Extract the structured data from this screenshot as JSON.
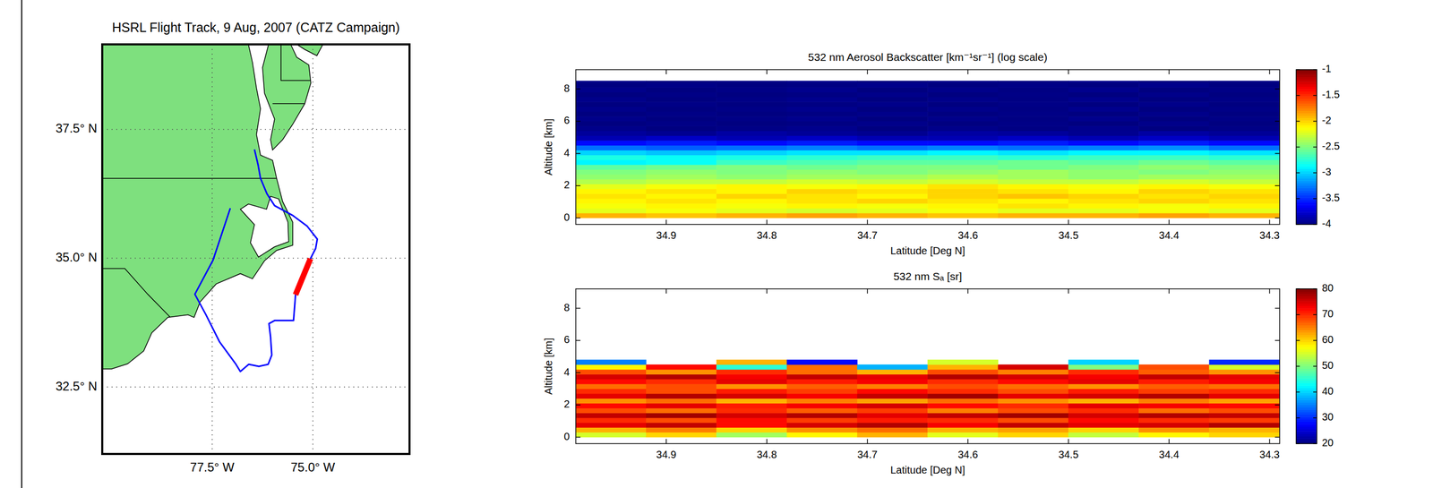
{
  "chart_data": [
    {
      "type": "map",
      "title": "HSRL Flight Track, 9 Aug, 2007 (CATZ Campaign)",
      "xlim": [
        -80.23,
        -72.6
      ],
      "ylim": [
        31.2,
        39.15
      ],
      "xticks": [
        {
          "value": -77.5,
          "label": "77.5° W"
        },
        {
          "value": -75,
          "label": "75.0° W"
        }
      ],
      "yticks": [
        {
          "value": 32.5,
          "label": "32.5° N"
        },
        {
          "value": 35,
          "label": "35.0° N"
        },
        {
          "value": 37.5,
          "label": "37.5° N"
        }
      ],
      "grid": true,
      "land": [
        {
          "color": "#7ee07e",
          "x": [
            -80.23,
            -76.6,
            -76.5,
            -76.4,
            -76.3,
            -76.4,
            -76.3,
            -76.0,
            -75.9,
            -75.75,
            -75.5,
            -75.5,
            -75.9,
            -76.2,
            -76.5,
            -76.8,
            -77.4,
            -77.8,
            -77.95,
            -78.1,
            -78.6,
            -79.0,
            -79.2,
            -79.6,
            -80.0,
            -80.23
          ],
          "y": [
            39.15,
            39.15,
            38.8,
            38.3,
            37.9,
            37.4,
            37.0,
            36.9,
            36.55,
            36.1,
            35.7,
            35.25,
            35.15,
            34.95,
            34.6,
            34.7,
            34.5,
            34.15,
            33.85,
            33.9,
            33.85,
            33.55,
            33.2,
            32.95,
            32.85,
            32.85
          ]
        },
        {
          "color": "#7ee07e",
          "x": [
            -76.1,
            -75.55,
            -75.4,
            -75.1,
            -75.05,
            -75.2,
            -75.5,
            -75.75,
            -76.0,
            -76.05,
            -75.95,
            -76.2,
            -76.25,
            -76.15
          ],
          "y": [
            39.15,
            39.15,
            38.9,
            38.75,
            38.4,
            38.0,
            37.6,
            37.3,
            37.1,
            37.3,
            37.7,
            38.2,
            38.7,
            39.0
          ]
        },
        {
          "color": "#7ee07e",
          "x": [
            -75.4,
            -74.75,
            -74.9,
            -75.2
          ],
          "y": [
            39.15,
            39.15,
            38.93,
            39.05
          ]
        }
      ],
      "water": [
        {
          "color": "#ffffff",
          "x": [
            -75.85,
            -75.62,
            -75.6,
            -75.95,
            -76.35,
            -76.55,
            -76.45,
            -76.8,
            -76.6,
            -76.15,
            -76.05
          ],
          "y": [
            36.15,
            35.7,
            35.32,
            35.22,
            35.02,
            35.3,
            35.65,
            35.95,
            36.05,
            35.95,
            36.2
          ]
        }
      ],
      "borders": [
        {
          "color": "#000000",
          "x": [
            -80.23,
            -75.9
          ],
          "y": [
            36.55,
            36.55
          ]
        },
        {
          "color": "#000000",
          "x": [
            -78.55,
            -79.1,
            -79.67,
            -80.23
          ],
          "y": [
            33.86,
            34.3,
            34.8,
            34.8
          ]
        },
        {
          "color": "#000000",
          "x": [
            -76.0,
            -75.2
          ],
          "y": [
            38.0,
            38.0
          ]
        },
        {
          "color": "#000000",
          "x": [
            -75.79,
            -75.79,
            -75.05
          ],
          "y": [
            39.15,
            38.45,
            38.45
          ]
        }
      ],
      "series": [
        {
          "color": "#0000ff",
          "x": [
            -77.05,
            -77.48,
            -77.93,
            -77.66,
            -77.32,
            -76.91,
            -76.8,
            -76.59,
            -76.34,
            -76.11,
            -76.02,
            -76.05,
            -76.09,
            -75.95,
            -75.48,
            -75.43,
            -75.06,
            -74.93,
            -74.89,
            -75.14,
            -75.5,
            -75.95,
            -76.14,
            -76.3,
            -76.36,
            -76.45
          ],
          "y": [
            35.97,
            34.96,
            34.3,
            33.91,
            33.38,
            32.94,
            32.8,
            32.94,
            32.9,
            32.94,
            33.12,
            33.47,
            33.73,
            33.79,
            33.79,
            34.29,
            34.99,
            35.19,
            35.37,
            35.62,
            35.83,
            36.02,
            36.25,
            36.55,
            36.81,
            37.11
          ]
        },
        {
          "color": "#ff0000",
          "x": [
            -75.43,
            -75.06
          ],
          "y": [
            34.29,
            34.99
          ]
        }
      ]
    },
    {
      "type": "heatmap",
      "title": "532 nm Aerosol Backscatter [km⁻¹sr⁻¹] (log scale)",
      "x_label": "Latitude [Deg N]",
      "y_label": "Altitude [km]",
      "xlim": [
        34.99,
        34.29
      ],
      "ylim": [
        -0.4,
        9.2
      ],
      "xticks": [
        34.9,
        34.8,
        34.7,
        34.6,
        34.5,
        34.4,
        34.3
      ],
      "yticks": [
        0,
        2,
        4,
        6,
        8
      ],
      "x_bins": [
        34.99,
        34.92,
        34.85,
        34.78,
        34.71,
        34.64,
        34.57,
        34.5,
        34.43,
        34.36,
        34.29
      ],
      "y_bins": [
        0,
        0.3,
        0.6,
        0.9,
        1.2,
        1.5,
        1.8,
        2.1,
        2.4,
        2.7,
        3.0,
        3.3,
        3.6,
        3.9,
        4.2,
        4.5,
        4.8,
        5.1,
        5.4,
        5.7,
        6.0,
        6.3,
        6.6,
        6.9,
        7.2,
        7.5,
        7.8,
        8.1,
        8.4,
        8.5
      ],
      "colorbar_lim": [
        -4,
        -1
      ],
      "colorbar_ticks": [
        -4,
        -3.5,
        -3,
        -2.5,
        -2,
        -1.5,
        -1
      ],
      "cells": [
        [
          -1.9,
          -1.95,
          -1.9,
          -1.85,
          -1.9,
          -1.95,
          -1.9,
          -1.9,
          -1.85,
          -1.9
        ],
        [
          -2.2,
          -2.15,
          -2.2,
          -2.25,
          -2.2,
          -2.15,
          -2.2,
          -2.2,
          -2.15,
          -2.2
        ],
        [
          -2.15,
          -2.1,
          -2.15,
          -2.1,
          -2.15,
          -2.1,
          -2.05,
          -2.1,
          -2.15,
          -2.1
        ],
        [
          -2.1,
          -2.05,
          -2.1,
          -2.05,
          -2.0,
          -2.05,
          -2.1,
          -2.05,
          -2.0,
          -2.05
        ],
        [
          -2.05,
          -2.1,
          -2.0,
          -2.05,
          -2.1,
          -2.0,
          -1.95,
          -2.0,
          -2.05,
          -2.0
        ],
        [
          -2.1,
          -2.05,
          -2.1,
          -2.0,
          -2.05,
          -2.0,
          -2.05,
          -2.1,
          -2.0,
          -2.05
        ],
        [
          -2.2,
          -2.15,
          -2.1,
          -2.15,
          -2.1,
          -2.05,
          -2.1,
          -2.15,
          -2.1,
          -2.15
        ],
        [
          -2.35,
          -2.3,
          -2.3,
          -2.25,
          -2.3,
          -2.25,
          -2.3,
          -2.3,
          -2.25,
          -2.3
        ],
        [
          -2.45,
          -2.4,
          -2.45,
          -2.4,
          -2.4,
          -2.35,
          -2.4,
          -2.45,
          -2.4,
          -2.4
        ],
        [
          -2.5,
          -2.45,
          -2.5,
          -2.45,
          -2.5,
          -2.45,
          -2.4,
          -2.45,
          -2.5,
          -2.45
        ],
        [
          -2.6,
          -2.55,
          -2.5,
          -2.55,
          -2.5,
          -2.5,
          -2.55,
          -2.5,
          -2.45,
          -2.5
        ],
        [
          -2.9,
          -2.85,
          -2.7,
          -2.65,
          -2.6,
          -2.6,
          -2.55,
          -2.6,
          -2.55,
          -2.6
        ],
        [
          -2.8,
          -2.85,
          -2.8,
          -2.75,
          -2.7,
          -2.7,
          -2.75,
          -2.7,
          -2.7,
          -2.75
        ],
        [
          -3.0,
          -3.05,
          -3.0,
          -2.95,
          -2.95,
          -2.9,
          -2.95,
          -2.9,
          -2.9,
          -2.95
        ],
        [
          -3.3,
          -3.35,
          -3.3,
          -3.25,
          -3.3,
          -3.25,
          -3.3,
          -3.25,
          -3.2,
          -3.3
        ],
        [
          -3.6,
          -3.55,
          -3.6,
          -3.55,
          -3.6,
          -3.6,
          -3.55,
          -3.6,
          -3.55,
          -3.6
        ],
        [
          -3.85,
          -3.8,
          -3.85,
          -3.8,
          -3.85,
          -3.85,
          -3.8,
          -3.85,
          -3.8,
          -3.85
        ],
        [
          -3.92,
          -3.95,
          -3.9,
          -3.93,
          -3.95,
          -3.9,
          -3.92,
          -3.95,
          -3.9,
          -3.93
        ],
        [
          -3.97,
          -4.0,
          -3.98,
          -3.96,
          -4.0,
          -3.97,
          -3.99,
          -3.96,
          -4.0,
          -3.98
        ],
        [
          -4.0,
          -3.98,
          -4.0,
          -3.99,
          -3.97,
          -4.0,
          -3.98,
          -4.0,
          -3.97,
          -4.0
        ],
        [
          -3.97,
          -4.0,
          -3.98,
          -3.96,
          -4.0,
          -3.97,
          -3.99,
          -3.96,
          -4.0,
          -3.98
        ],
        [
          -4.0,
          -3.98,
          -4.0,
          -3.99,
          -3.97,
          -4.0,
          -3.98,
          -4.0,
          -3.97,
          -4.0
        ],
        [
          -3.97,
          -4.0,
          -3.98,
          -3.96,
          -4.0,
          -3.97,
          -3.99,
          -3.96,
          -4.0,
          -3.98
        ],
        [
          -4.0,
          -3.98,
          -4.0,
          -3.99,
          -3.97,
          -4.0,
          -3.98,
          -4.0,
          -3.97,
          -4.0
        ],
        [
          -3.97,
          -4.0,
          -3.98,
          -3.96,
          -4.0,
          -3.97,
          -3.99,
          -3.96,
          -4.0,
          -3.98
        ],
        [
          -4.0,
          -3.98,
          -4.0,
          -3.99,
          -3.97,
          -4.0,
          -3.98,
          -4.0,
          -3.97,
          -4.0
        ],
        [
          -3.97,
          -4.0,
          -3.98,
          -3.96,
          -4.0,
          -3.97,
          -3.99,
          -3.96,
          -4.0,
          -3.98
        ],
        [
          -4.0,
          -3.98,
          -4.0,
          -3.99,
          -3.97,
          -4.0,
          -3.98,
          -4.0,
          -3.97,
          -4.0
        ],
        [
          -3.97,
          -4.0,
          -3.98,
          -3.96,
          -4.0,
          -3.97,
          -3.99,
          -3.96,
          -4.0,
          -3.98
        ]
      ]
    },
    {
      "type": "heatmap",
      "title": "532 nm Sₐ [sr]",
      "x_label": "Latitude [Deg N]",
      "y_label": "Altitude [km]",
      "xlim": [
        34.99,
        34.29
      ],
      "ylim": [
        -0.4,
        9.2
      ],
      "xticks": [
        34.9,
        34.8,
        34.7,
        34.6,
        34.5,
        34.4,
        34.3
      ],
      "yticks": [
        0,
        2,
        4,
        6,
        8
      ],
      "x_bins": [
        34.99,
        34.92,
        34.85,
        34.78,
        34.71,
        34.64,
        34.57,
        34.5,
        34.43,
        34.36,
        34.29
      ],
      "y_bins": [
        0,
        0.3,
        0.6,
        0.9,
        1.2,
        1.5,
        1.8,
        2.1,
        2.4,
        2.7,
        3.0,
        3.3,
        3.6,
        3.9,
        4.2,
        4.5,
        4.8,
        5.1,
        5.4,
        5.7,
        6.0,
        6.3,
        6.6,
        6.9,
        7.2,
        7.5,
        7.8,
        8.1,
        8.4,
        8.5
      ],
      "colorbar_lim": [
        20,
        80
      ],
      "colorbar_ticks": [
        20,
        30,
        40,
        50,
        60,
        70,
        80
      ],
      "cells": [
        [
          55,
          60,
          52,
          58,
          62,
          56,
          60,
          54,
          58,
          60
        ],
        [
          62,
          65,
          60,
          64,
          66,
          62,
          63,
          60,
          64,
          62
        ],
        [
          74,
          76,
          72,
          75,
          77,
          73,
          76,
          74,
          75,
          77
        ],
        [
          70,
          68,
          72,
          69,
          71,
          70,
          68,
          72,
          70,
          69
        ],
        [
          76,
          78,
          75,
          77,
          74,
          76,
          78,
          75,
          77,
          76
        ],
        [
          68,
          66,
          70,
          67,
          69,
          65,
          68,
          70,
          66,
          68
        ],
        [
          72,
          74,
          71,
          73,
          75,
          72,
          70,
          74,
          73,
          72
        ],
        [
          64,
          66,
          62,
          65,
          63,
          66,
          64,
          62,
          65,
          63
        ],
        [
          74,
          77,
          75,
          73,
          76,
          78,
          74,
          75,
          77,
          74
        ],
        [
          70,
          68,
          71,
          69,
          72,
          70,
          68,
          71,
          69,
          70
        ],
        [
          66,
          68,
          64,
          67,
          65,
          68,
          66,
          64,
          67,
          66
        ],
        [
          72,
          70,
          74,
          71,
          73,
          70,
          72,
          74,
          71,
          73
        ],
        [
          75,
          77,
          73,
          76,
          74,
          77,
          75,
          73,
          76,
          74
        ],
        [
          68,
          64,
          70,
          66,
          62,
          68,
          65,
          70,
          67,
          64
        ],
        [
          58,
          72,
          45,
          66,
          38,
          62,
          75,
          50,
          68,
          55
        ],
        [
          35,
          null,
          62,
          28,
          null,
          55,
          null,
          40,
          null,
          30
        ],
        [
          null,
          null,
          null,
          null,
          null,
          null,
          null,
          null,
          null,
          null
        ],
        [
          null,
          null,
          null,
          null,
          null,
          null,
          null,
          null,
          null,
          null
        ],
        [
          null,
          null,
          null,
          null,
          null,
          null,
          null,
          null,
          null,
          null
        ],
        [
          null,
          null,
          null,
          null,
          null,
          null,
          null,
          null,
          null,
          null
        ],
        [
          null,
          null,
          null,
          null,
          null,
          null,
          null,
          null,
          null,
          null
        ],
        [
          null,
          null,
          null,
          null,
          null,
          null,
          null,
          null,
          null,
          null
        ],
        [
          null,
          null,
          null,
          null,
          null,
          null,
          null,
          null,
          null,
          null
        ],
        [
          null,
          null,
          null,
          null,
          null,
          null,
          null,
          null,
          null,
          null
        ],
        [
          null,
          null,
          null,
          null,
          null,
          null,
          null,
          null,
          null,
          null
        ],
        [
          null,
          null,
          null,
          null,
          null,
          null,
          null,
          null,
          null,
          null
        ],
        [
          null,
          null,
          null,
          null,
          null,
          null,
          null,
          null,
          null,
          null
        ],
        [
          null,
          null,
          null,
          null,
          null,
          null,
          null,
          null,
          null,
          null
        ],
        [
          null,
          null,
          null,
          null,
          null,
          null,
          null,
          null,
          null,
          null
        ]
      ]
    }
  ]
}
